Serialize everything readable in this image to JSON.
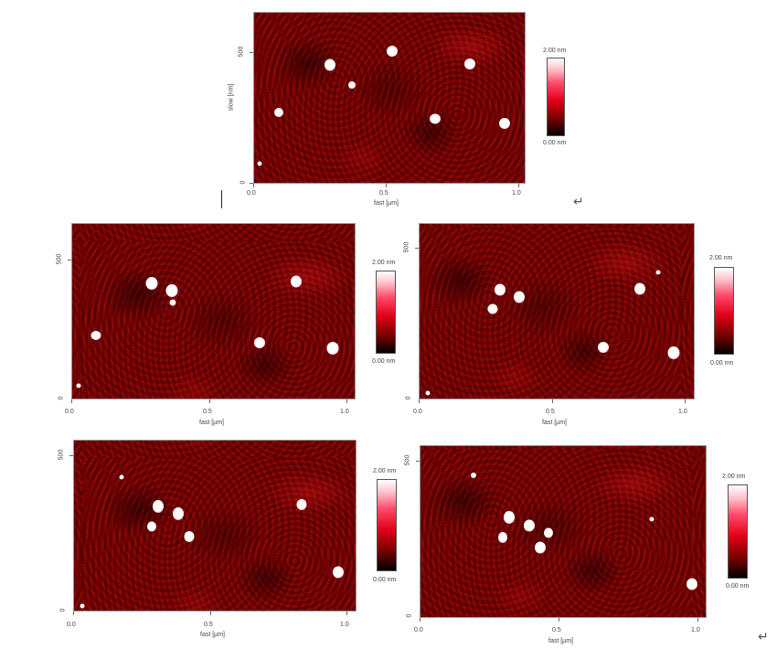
{
  "images": [
    {
      "id": "a",
      "x_axis": {
        "title": "fast [µm]",
        "ticks": [
          "0.0",
          "0.5",
          "1.0"
        ]
      },
      "y_axis": {
        "title": "slow [nm]",
        "ticks": [
          "500",
          "0"
        ]
      },
      "colorbar": {
        "max": "2.00 nm",
        "min": "0.00 nm"
      }
    },
    {
      "id": "b",
      "x_axis": {
        "title": "fast [µm]",
        "ticks": [
          "0.0",
          "0.5",
          "1.0"
        ]
      },
      "y_axis": {
        "title": "",
        "ticks": [
          "500",
          "0"
        ]
      },
      "colorbar": {
        "max": "2.00 nm",
        "min": "0.00 nm"
      }
    },
    {
      "id": "c",
      "x_axis": {
        "title": "fast [µm]",
        "ticks": [
          "0.0",
          "0.5",
          "1.0"
        ]
      },
      "y_axis": {
        "title": "",
        "ticks": [
          "500",
          "0"
        ]
      },
      "colorbar": {
        "max": "2.00 nm",
        "min": "0.00 nm"
      }
    },
    {
      "id": "d",
      "x_axis": {
        "title": "fast [µm]",
        "ticks": [
          "0.0",
          "0.5",
          "1.0"
        ]
      },
      "y_axis": {
        "title": "",
        "ticks": [
          "500",
          "0"
        ]
      },
      "colorbar": {
        "max": "2.00 nm",
        "min": "0.00 nm"
      }
    },
    {
      "id": "e",
      "x_axis": {
        "title": "fast [µm]",
        "ticks": [
          "0.0",
          "0.5",
          "1.0"
        ]
      },
      "y_axis": {
        "title": "",
        "ticks": [
          "500",
          "0"
        ]
      },
      "colorbar": {
        "max": "2.00 nm",
        "min": "0.00 nm"
      }
    }
  ],
  "paragraph_marks": [
    "↵",
    "↵"
  ],
  "colors": {
    "map_base": "#7a0000",
    "particle": "#ffffff"
  }
}
